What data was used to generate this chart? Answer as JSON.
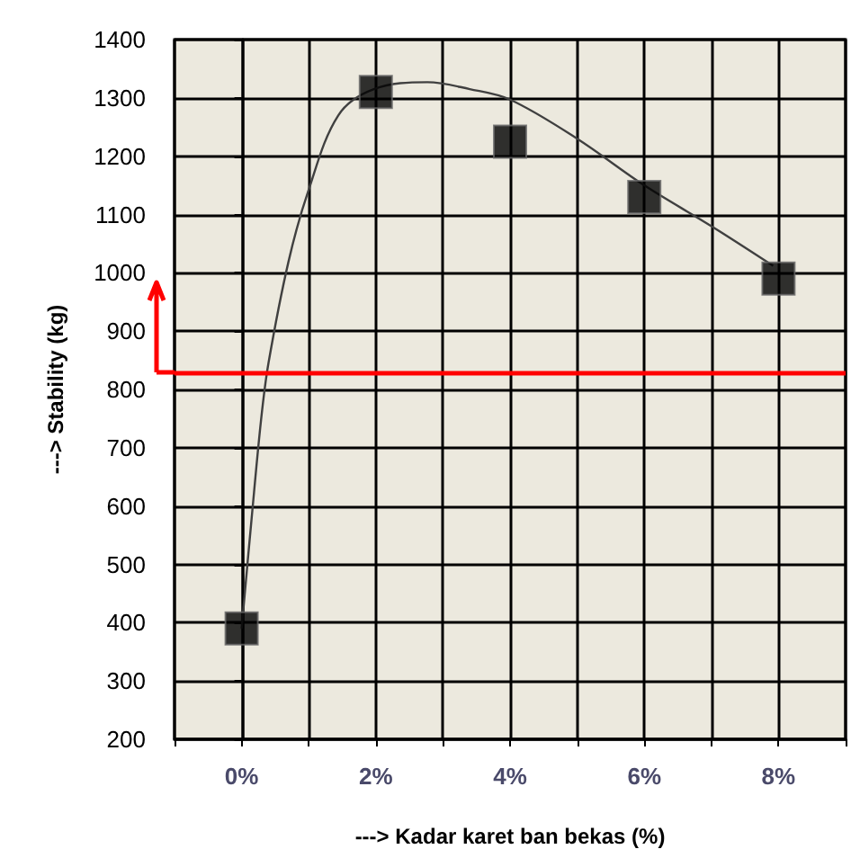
{
  "chart_data": {
    "type": "scatter",
    "xlabel": "---> Kadar karet ban bekas (%)",
    "ylabel": "---> Stability (kg)",
    "xlim": [
      -1,
      9
    ],
    "xticks": [
      {
        "value": -1,
        "label": null
      },
      {
        "value": 0,
        "label": "0%"
      },
      {
        "value": 1,
        "label": null
      },
      {
        "value": 2,
        "label": "2%"
      },
      {
        "value": 3,
        "label": null
      },
      {
        "value": 4,
        "label": "4%"
      },
      {
        "value": 5,
        "label": null
      },
      {
        "value": 6,
        "label": "6%"
      },
      {
        "value": 7,
        "label": null
      },
      {
        "value": 8,
        "label": "8%"
      },
      {
        "value": 9,
        "label": null
      }
    ],
    "ylim": [
      200,
      1400
    ],
    "yticks": [
      200,
      300,
      400,
      500,
      600,
      700,
      800,
      900,
      1000,
      1100,
      1200,
      1300,
      1400
    ],
    "grid": true,
    "series": [
      {
        "color": "#000000",
        "marker": "square",
        "x": [
          0,
          2,
          4,
          6,
          8
        ],
        "values": [
          390,
          1310,
          1225,
          1130,
          990
        ]
      },
      {
        "type": "line",
        "color": "#404040",
        "marker": "none",
        "x": [
          0,
          0.15,
          0.29,
          0.4,
          0.7,
          0.99,
          1.44,
          1.97,
          2.77,
          3.4,
          4,
          5,
          6,
          7,
          7.92
        ],
        "values": [
          390,
          580,
          748,
          845,
          1020,
          1139,
          1270,
          1315,
          1327,
          1315,
          1297,
          1230,
          1150,
          1080,
          1012
        ]
      }
    ],
    "ref_lines": [
      {
        "axis": "y",
        "value": 830,
        "color": "#ff0000"
      }
    ]
  }
}
